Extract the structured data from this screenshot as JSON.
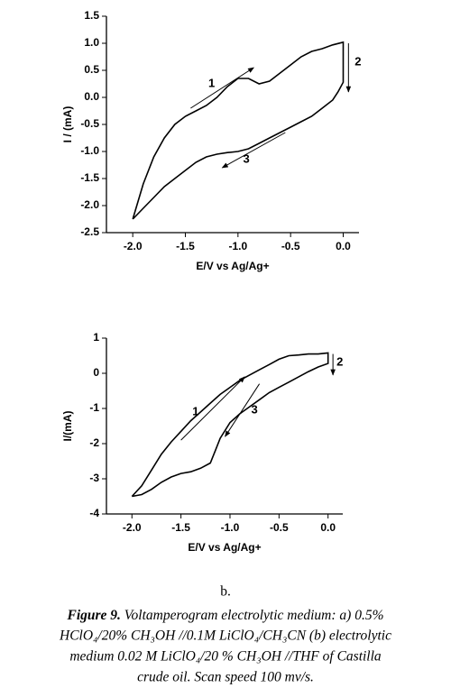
{
  "chart_data": [
    {
      "type": "line",
      "ylabel": "I / (mA)",
      "xlabel": "E/V vs Ag/Ag+",
      "xlim": [
        -2.25,
        0.15
      ],
      "ylim": [
        -2.5,
        1.5
      ],
      "xticks": [
        {
          "value": -2,
          "label": "-2.0"
        },
        -1.5,
        {
          "value": -1,
          "label": "-1.0"
        },
        -0.5,
        {
          "value": 0,
          "label": "0.0"
        }
      ],
      "yticks": [
        -2.5,
        {
          "value": -2,
          "label": "-2.0"
        },
        -1.5,
        {
          "value": -1,
          "label": "-1.0"
        },
        -0.5,
        {
          "value": 0,
          "label": "0.0"
        },
        0.5,
        {
          "value": 1,
          "label": "1.0"
        },
        1.5
      ],
      "color": "#000000",
      "x": [
        -2.0,
        -1.9,
        -1.8,
        -1.7,
        -1.6,
        -1.5,
        -1.4,
        -1.3,
        -1.2,
        -1.1,
        -1.0,
        -0.9,
        -0.8,
        -0.7,
        -0.6,
        -0.5,
        -0.4,
        -0.3,
        -0.2,
        -0.1,
        0.0,
        0.0,
        -0.05,
        -0.1,
        -0.2,
        -0.3,
        -0.4,
        -0.5,
        -0.6,
        -0.7,
        -0.8,
        -0.9,
        -1.0,
        -1.1,
        -1.2,
        -1.3,
        -1.4,
        -1.5,
        -1.6,
        -1.7,
        -1.8,
        -1.9,
        -2.0
      ],
      "values": [
        -2.25,
        -1.6,
        -1.1,
        -0.75,
        -0.5,
        -0.35,
        -0.25,
        -0.15,
        0.0,
        0.2,
        0.35,
        0.35,
        0.25,
        0.3,
        0.45,
        0.6,
        0.75,
        0.85,
        0.9,
        0.97,
        1.02,
        0.28,
        0.1,
        -0.05,
        -0.2,
        -0.35,
        -0.45,
        -0.55,
        -0.65,
        -0.75,
        -0.85,
        -0.95,
        -1.0,
        -1.02,
        -1.05,
        -1.1,
        -1.2,
        -1.35,
        -1.5,
        -1.65,
        -1.85,
        -2.05,
        -2.25
      ],
      "annotations": [
        "1",
        "2",
        "3"
      ]
    },
    {
      "type": "line",
      "ylabel": "I/(mA)",
      "xlabel": "E/V vs Ag/Ag+",
      "xlim": [
        -2.26,
        0.15
      ],
      "ylim": [
        -4,
        1
      ],
      "xticks": [
        {
          "value": -2,
          "label": "-2.0"
        },
        -1.5,
        {
          "value": -1,
          "label": "-1.0"
        },
        -0.5,
        {
          "value": 0,
          "label": "0.0"
        }
      ],
      "yticks": [
        -4,
        -3,
        -2,
        -1,
        0,
        1
      ],
      "color": "#000000",
      "x": [
        -2.0,
        -1.9,
        -1.8,
        -1.7,
        -1.6,
        -1.5,
        -1.4,
        -1.3,
        -1.2,
        -1.1,
        -1.0,
        -0.9,
        -0.8,
        -0.7,
        -0.6,
        -0.5,
        -0.4,
        -0.3,
        -0.2,
        -0.1,
        0.0,
        0.0,
        -0.1,
        -0.2,
        -0.3,
        -0.4,
        -0.5,
        -0.6,
        -0.7,
        -0.8,
        -0.9,
        -1.0,
        -1.1,
        -1.15,
        -1.2,
        -1.3,
        -1.4,
        -1.5,
        -1.6,
        -1.7,
        -1.8,
        -1.9,
        -2.0
      ],
      "values": [
        -3.5,
        -3.2,
        -2.75,
        -2.3,
        -1.95,
        -1.65,
        -1.35,
        -1.1,
        -0.85,
        -0.6,
        -0.4,
        -0.2,
        -0.05,
        0.1,
        0.25,
        0.4,
        0.5,
        0.52,
        0.55,
        0.55,
        0.58,
        0.28,
        0.18,
        0.05,
        -0.1,
        -0.25,
        -0.4,
        -0.55,
        -0.75,
        -0.95,
        -1.15,
        -1.4,
        -1.85,
        -2.2,
        -2.55,
        -2.7,
        -2.8,
        -2.85,
        -2.95,
        -3.1,
        -3.3,
        -3.45,
        -3.5
      ],
      "annotations": [
        "1",
        "2",
        "3"
      ]
    }
  ],
  "panel_label": "b.",
  "caption": {
    "label": "Figure 9.",
    "lines": [
      "Voltamperogram electrolytic medium: a) 0.5%",
      "HClO₄/20% CH₃OH //0.1M LiClO₄/CH₃CN (b) electrolytic",
      "medium 0.02 M LiClO₄/20 % CH₃OH //THF of Castilla",
      "crude oil. Scan speed 100 mv/s."
    ]
  }
}
